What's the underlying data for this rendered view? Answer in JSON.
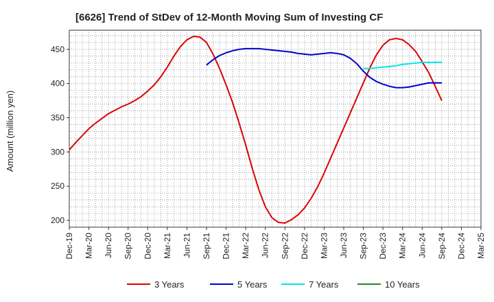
{
  "chart_data": {
    "type": "line",
    "title": "[6626]  Trend of StDev of 12-Month Moving Sum of Investing CF",
    "ylabel": "Amount (million yen)",
    "xlabel": "",
    "ylim": [
      190,
      478
    ],
    "yticks": [
      200,
      250,
      300,
      350,
      400,
      450
    ],
    "x_start": "2019-12",
    "x_end": "2025-03",
    "xtick_labels": [
      "Dec-19",
      "Mar-20",
      "Jun-20",
      "Sep-20",
      "Dec-20",
      "Mar-21",
      "Jun-21",
      "Sep-21",
      "Dec-21",
      "Mar-22",
      "Jun-22",
      "Sep-22",
      "Dec-22",
      "Mar-23",
      "Jun-23",
      "Sep-23",
      "Dec-23",
      "Mar-24",
      "Jun-24",
      "Sep-24",
      "Dec-24",
      "Mar-25"
    ],
    "grid": true,
    "legend_position": "bottom",
    "series": [
      {
        "name": "3 Years",
        "color": "#dd0000",
        "points": [
          [
            "2019-12",
            303
          ],
          [
            "2020-01",
            314
          ],
          [
            "2020-02",
            324
          ],
          [
            "2020-03",
            334
          ],
          [
            "2020-04",
            342
          ],
          [
            "2020-05",
            349
          ],
          [
            "2020-06",
            356
          ],
          [
            "2020-07",
            361
          ],
          [
            "2020-08",
            366
          ],
          [
            "2020-09",
            370
          ],
          [
            "2020-10",
            375
          ],
          [
            "2020-11",
            381
          ],
          [
            "2020-12",
            389
          ],
          [
            "2021-01",
            398
          ],
          [
            "2021-02",
            410
          ],
          [
            "2021-03",
            424
          ],
          [
            "2021-04",
            440
          ],
          [
            "2021-05",
            454
          ],
          [
            "2021-06",
            464
          ],
          [
            "2021-07",
            469
          ],
          [
            "2021-08",
            468
          ],
          [
            "2021-09",
            460
          ],
          [
            "2021-10",
            443
          ],
          [
            "2021-11",
            422
          ],
          [
            "2021-12",
            398
          ],
          [
            "2022-01",
            372
          ],
          [
            "2022-02",
            342
          ],
          [
            "2022-03",
            310
          ],
          [
            "2022-04",
            276
          ],
          [
            "2022-05",
            245
          ],
          [
            "2022-06",
            220
          ],
          [
            "2022-07",
            204
          ],
          [
            "2022-08",
            197
          ],
          [
            "2022-09",
            196
          ],
          [
            "2022-10",
            201
          ],
          [
            "2022-11",
            208
          ],
          [
            "2022-12",
            218
          ],
          [
            "2023-01",
            232
          ],
          [
            "2023-02",
            249
          ],
          [
            "2023-03",
            269
          ],
          [
            "2023-04",
            291
          ],
          [
            "2023-05",
            313
          ],
          [
            "2023-06",
            335
          ],
          [
            "2023-07",
            357
          ],
          [
            "2023-08",
            379
          ],
          [
            "2023-09",
            401
          ],
          [
            "2023-10",
            423
          ],
          [
            "2023-11",
            442
          ],
          [
            "2023-12",
            456
          ],
          [
            "2024-01",
            464
          ],
          [
            "2024-02",
            466
          ],
          [
            "2024-03",
            464
          ],
          [
            "2024-04",
            457
          ],
          [
            "2024-05",
            447
          ],
          [
            "2024-06",
            432
          ],
          [
            "2024-07",
            416
          ],
          [
            "2024-08",
            396
          ],
          [
            "2024-09",
            375
          ]
        ]
      },
      {
        "name": "5 Years",
        "color": "#0000cc",
        "points": [
          [
            "2021-09",
            427
          ],
          [
            "2021-10",
            435
          ],
          [
            "2021-11",
            441
          ],
          [
            "2021-12",
            445
          ],
          [
            "2022-01",
            448
          ],
          [
            "2022-02",
            450
          ],
          [
            "2022-03",
            451
          ],
          [
            "2022-04",
            451
          ],
          [
            "2022-05",
            451
          ],
          [
            "2022-06",
            450
          ],
          [
            "2022-07",
            449
          ],
          [
            "2022-08",
            448
          ],
          [
            "2022-09",
            447
          ],
          [
            "2022-10",
            446
          ],
          [
            "2022-11",
            444
          ],
          [
            "2022-12",
            443
          ],
          [
            "2023-01",
            442
          ],
          [
            "2023-02",
            443
          ],
          [
            "2023-03",
            444
          ],
          [
            "2023-04",
            445
          ],
          [
            "2023-05",
            444
          ],
          [
            "2023-06",
            442
          ],
          [
            "2023-07",
            437
          ],
          [
            "2023-08",
            429
          ],
          [
            "2023-09",
            418
          ],
          [
            "2023-10",
            409
          ],
          [
            "2023-11",
            403
          ],
          [
            "2023-12",
            399
          ],
          [
            "2024-01",
            396
          ],
          [
            "2024-02",
            394
          ],
          [
            "2024-03",
            394
          ],
          [
            "2024-04",
            395
          ],
          [
            "2024-05",
            397
          ],
          [
            "2024-06",
            399
          ],
          [
            "2024-07",
            401
          ],
          [
            "2024-08",
            401
          ],
          [
            "2024-09",
            401
          ]
        ]
      },
      {
        "name": "7 Years",
        "color": "#00e5e5",
        "points": [
          [
            "2023-09",
            422
          ],
          [
            "2023-10",
            422
          ],
          [
            "2023-11",
            423
          ],
          [
            "2023-12",
            424
          ],
          [
            "2024-01",
            425
          ],
          [
            "2024-02",
            426
          ],
          [
            "2024-03",
            428
          ],
          [
            "2024-04",
            429
          ],
          [
            "2024-05",
            430
          ],
          [
            "2024-06",
            431
          ],
          [
            "2024-07",
            431
          ],
          [
            "2024-08",
            431
          ],
          [
            "2024-09",
            431
          ]
        ]
      },
      {
        "name": "10 Years",
        "color": "#228822",
        "points": []
      }
    ]
  }
}
